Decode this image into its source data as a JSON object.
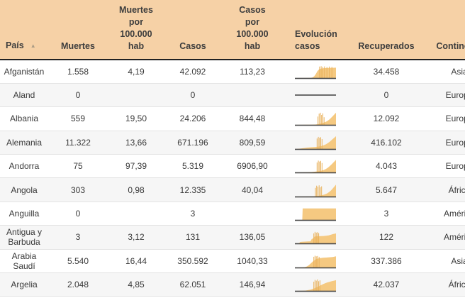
{
  "colors": {
    "header_background": "#f6d1a6",
    "sparkline_fill": "#f5c981",
    "sparkline_spike": "#e9b25d",
    "sparkline_baseline": "#4a4a4a",
    "row_stripe": "#f6f6f6",
    "header_border": "#222222",
    "text": "#3a3a3a"
  },
  "table": {
    "columns": [
      {
        "key": "pais",
        "label": "País",
        "sort_indicator": "▲"
      },
      {
        "key": "muertes",
        "label": "Muertes"
      },
      {
        "key": "muertes_100k",
        "label": "Muertes\npor\n100.000\nhab"
      },
      {
        "key": "casos",
        "label": "Casos"
      },
      {
        "key": "casos_100k",
        "label": "Casos\npor\n100.000\nhab"
      },
      {
        "key": "evolucion",
        "label": "Evolución\ncasos"
      },
      {
        "key": "recuperados",
        "label": "Recuperados"
      },
      {
        "key": "continente",
        "label": "Continente"
      }
    ],
    "rows": [
      {
        "pais": "Afganistán",
        "muertes": "1.558",
        "muertes_100k": "4,19",
        "casos": "42.092",
        "casos_100k": "113,23",
        "recuperados": "34.458",
        "continente": "Asia",
        "spark": {
          "flat": false,
          "points": [
            [
              0,
              0
            ],
            [
              38,
              1
            ],
            [
              43,
              5
            ],
            [
              47,
              14
            ],
            [
              51,
              32
            ],
            [
              55,
              55
            ],
            [
              59,
              68
            ],
            [
              63,
              74
            ],
            [
              70,
              77
            ],
            [
              80,
              79
            ],
            [
              90,
              80
            ],
            [
              100,
              81
            ]
          ],
          "spikes": [
            [
              60,
              90
            ],
            [
              64,
              93
            ],
            [
              68,
              87
            ],
            [
              72,
              91
            ],
            [
              78,
              86
            ],
            [
              84,
              90
            ],
            [
              90,
              87
            ]
          ]
        }
      },
      {
        "pais": "Aland",
        "muertes": "0",
        "muertes_100k": "",
        "casos": "0",
        "casos_100k": "",
        "recuperados": "0",
        "continente": "Europa",
        "spark": {
          "flat": true,
          "points": [],
          "spikes": []
        }
      },
      {
        "pais": "Albania",
        "muertes": "559",
        "muertes_100k": "19,50",
        "casos": "24.206",
        "casos_100k": "844,48",
        "recuperados": "12.092",
        "continente": "Europa",
        "spark": {
          "flat": false,
          "points": [
            [
              0,
              0
            ],
            [
              40,
              1
            ],
            [
              50,
              3
            ],
            [
              55,
              5
            ],
            [
              60,
              8
            ],
            [
              65,
              12
            ],
            [
              70,
              17
            ],
            [
              75,
              24
            ],
            [
              80,
              33
            ],
            [
              85,
              45
            ],
            [
              88,
              55
            ],
            [
              92,
              68
            ],
            [
              96,
              82
            ],
            [
              100,
              95
            ]
          ],
          "spikes": [
            [
              56,
              65
            ],
            [
              59,
              88
            ],
            [
              62,
              95
            ],
            [
              65,
              78
            ],
            [
              68,
              90
            ],
            [
              71,
              60
            ]
          ]
        }
      },
      {
        "pais": "Alemania",
        "muertes": "11.322",
        "muertes_100k": "13,66",
        "casos": "671.196",
        "casos_100k": "809,59",
        "recuperados": "416.102",
        "continente": "Europa",
        "spark": {
          "flat": false,
          "points": [
            [
              0,
              0
            ],
            [
              8,
              1
            ],
            [
              15,
              4
            ],
            [
              22,
              8
            ],
            [
              30,
              11
            ],
            [
              40,
              14
            ],
            [
              50,
              16
            ],
            [
              58,
              19
            ],
            [
              65,
              24
            ],
            [
              70,
              29
            ],
            [
              75,
              36
            ],
            [
              80,
              46
            ],
            [
              85,
              58
            ],
            [
              90,
              72
            ],
            [
              95,
              86
            ],
            [
              100,
              100
            ]
          ],
          "spikes": [
            [
              54,
              82
            ],
            [
              57,
              95
            ],
            [
              60,
              88
            ],
            [
              63,
              92
            ],
            [
              66,
              78
            ]
          ]
        }
      },
      {
        "pais": "Andorra",
        "muertes": "75",
        "muertes_100k": "97,39",
        "casos": "5.319",
        "casos_100k": "6906,90",
        "recuperados": "4.043",
        "continente": "Europa",
        "spark": {
          "flat": false,
          "points": [
            [
              0,
              0
            ],
            [
              30,
              1
            ],
            [
              40,
              3
            ],
            [
              50,
              6
            ],
            [
              58,
              9
            ],
            [
              65,
              14
            ],
            [
              70,
              19
            ],
            [
              75,
              26
            ],
            [
              80,
              36
            ],
            [
              85,
              50
            ],
            [
              90,
              65
            ],
            [
              95,
              82
            ],
            [
              100,
              98
            ]
          ],
          "spikes": [
            [
              54,
              78
            ],
            [
              57,
              92
            ],
            [
              60,
              85
            ],
            [
              63,
              90
            ],
            [
              66,
              74
            ]
          ]
        }
      },
      {
        "pais": "Angola",
        "muertes": "303",
        "muertes_100k": "0,98",
        "casos": "12.335",
        "casos_100k": "40,04",
        "recuperados": "5.647",
        "continente": "África",
        "spark": {
          "flat": false,
          "points": [
            [
              0,
              0
            ],
            [
              40,
              1
            ],
            [
              50,
              3
            ],
            [
              58,
              6
            ],
            [
              65,
              10
            ],
            [
              72,
              16
            ],
            [
              78,
              24
            ],
            [
              83,
              34
            ],
            [
              88,
              48
            ],
            [
              93,
              66
            ],
            [
              97,
              82
            ],
            [
              100,
              93
            ]
          ],
          "spikes": [
            [
              50,
              68
            ],
            [
              53,
              85
            ],
            [
              56,
              77
            ],
            [
              59,
              88
            ],
            [
              62,
              72
            ],
            [
              65,
              80
            ]
          ]
        }
      },
      {
        "pais": "Anguilla",
        "muertes": "0",
        "muertes_100k": "",
        "casos": "3",
        "casos_100k": "",
        "recuperados": "3",
        "continente": "América",
        "spark": {
          "flat": false,
          "points": [
            [
              0,
              0
            ],
            [
              18,
              0
            ],
            [
              19,
              90
            ],
            [
              100,
              90
            ]
          ],
          "spikes": []
        }
      },
      {
        "pais": "Antigua y Barbuda",
        "muertes": "3",
        "muertes_100k": "3,12",
        "casos": "131",
        "casos_100k": "136,05",
        "recuperados": "122",
        "continente": "América",
        "spark": {
          "flat": false,
          "points": [
            [
              0,
              0
            ],
            [
              10,
              1
            ],
            [
              13,
              11
            ],
            [
              18,
              13
            ],
            [
              25,
              14
            ],
            [
              32,
              15
            ],
            [
              38,
              16
            ],
            [
              41,
              35
            ],
            [
              44,
              38
            ],
            [
              47,
              52
            ],
            [
              52,
              55
            ],
            [
              58,
              56
            ],
            [
              64,
              57
            ],
            [
              70,
              58
            ],
            [
              76,
              60
            ],
            [
              82,
              62
            ],
            [
              88,
              68
            ],
            [
              93,
              73
            ],
            [
              100,
              78
            ]
          ],
          "spikes": [
            [
              46,
              78
            ],
            [
              49,
              90
            ],
            [
              52,
              84
            ],
            [
              55,
              88
            ],
            [
              58,
              80
            ]
          ]
        }
      },
      {
        "pais": "Arabia Saudí",
        "muertes": "5.540",
        "muertes_100k": "16,44",
        "casos": "350.592",
        "casos_100k": "1040,33",
        "recuperados": "337.386",
        "continente": "Asia",
        "spark": {
          "flat": false,
          "points": [
            [
              0,
              0
            ],
            [
              18,
              1
            ],
            [
              24,
              3
            ],
            [
              29,
              8
            ],
            [
              34,
              18
            ],
            [
              39,
              33
            ],
            [
              44,
              48
            ],
            [
              49,
              60
            ],
            [
              54,
              68
            ],
            [
              60,
              73
            ],
            [
              68,
              76
            ],
            [
              76,
              78
            ],
            [
              84,
              80
            ],
            [
              92,
              82
            ],
            [
              100,
              87
            ]
          ],
          "spikes": [
            [
              46,
              84
            ],
            [
              49,
              92
            ],
            [
              52,
              87
            ],
            [
              55,
              90
            ],
            [
              59,
              84
            ]
          ]
        }
      },
      {
        "pais": "Argelia",
        "muertes": "2.048",
        "muertes_100k": "4,85",
        "casos": "62.051",
        "casos_100k": "146,94",
        "recuperados": "42.037",
        "continente": "África",
        "spark": {
          "flat": false,
          "points": [
            [
              0,
              0
            ],
            [
              18,
              1
            ],
            [
              26,
              3
            ],
            [
              32,
              6
            ],
            [
              38,
              10
            ],
            [
              43,
              15
            ],
            [
              48,
              21
            ],
            [
              53,
              28
            ],
            [
              58,
              36
            ],
            [
              63,
              44
            ],
            [
              68,
              52
            ],
            [
              73,
              59
            ],
            [
              78,
              65
            ],
            [
              84,
              71
            ],
            [
              90,
              76
            ],
            [
              95,
              80
            ],
            [
              100,
              84
            ]
          ],
          "spikes": [
            [
              46,
              72
            ],
            [
              49,
              86
            ],
            [
              52,
              80
            ],
            [
              55,
              90
            ],
            [
              58,
              76
            ],
            [
              61,
              83
            ]
          ]
        }
      }
    ]
  }
}
